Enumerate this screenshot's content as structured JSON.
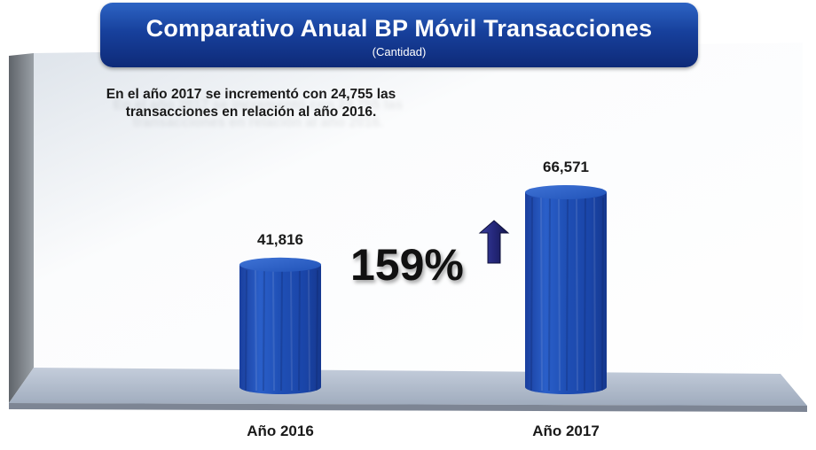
{
  "title": "Comparativo Anual BP Móvil Transacciones",
  "subtitle": "(Cantidad)",
  "note": "En el año 2017 se incrementó con 24,755 las transacciones en relación al año 2016.",
  "growth_label": "159%",
  "chart_data": {
    "type": "bar",
    "title": "Comparativo Anual BP Móvil Transacciones",
    "subtitle": "(Cantidad)",
    "categories": [
      "Año 2016",
      "Año 2017"
    ],
    "values": [
      41816,
      66571
    ],
    "value_labels": [
      "41,816",
      "66,571"
    ],
    "annotation": "159%",
    "style": "3d-cylinder",
    "color": "#1f4fb5"
  },
  "colors": {
    "banner": "#17409c",
    "bar": "#1f4fb5",
    "arrow": "#24277a"
  },
  "icons": {
    "increase": "up-arrow-icon"
  }
}
